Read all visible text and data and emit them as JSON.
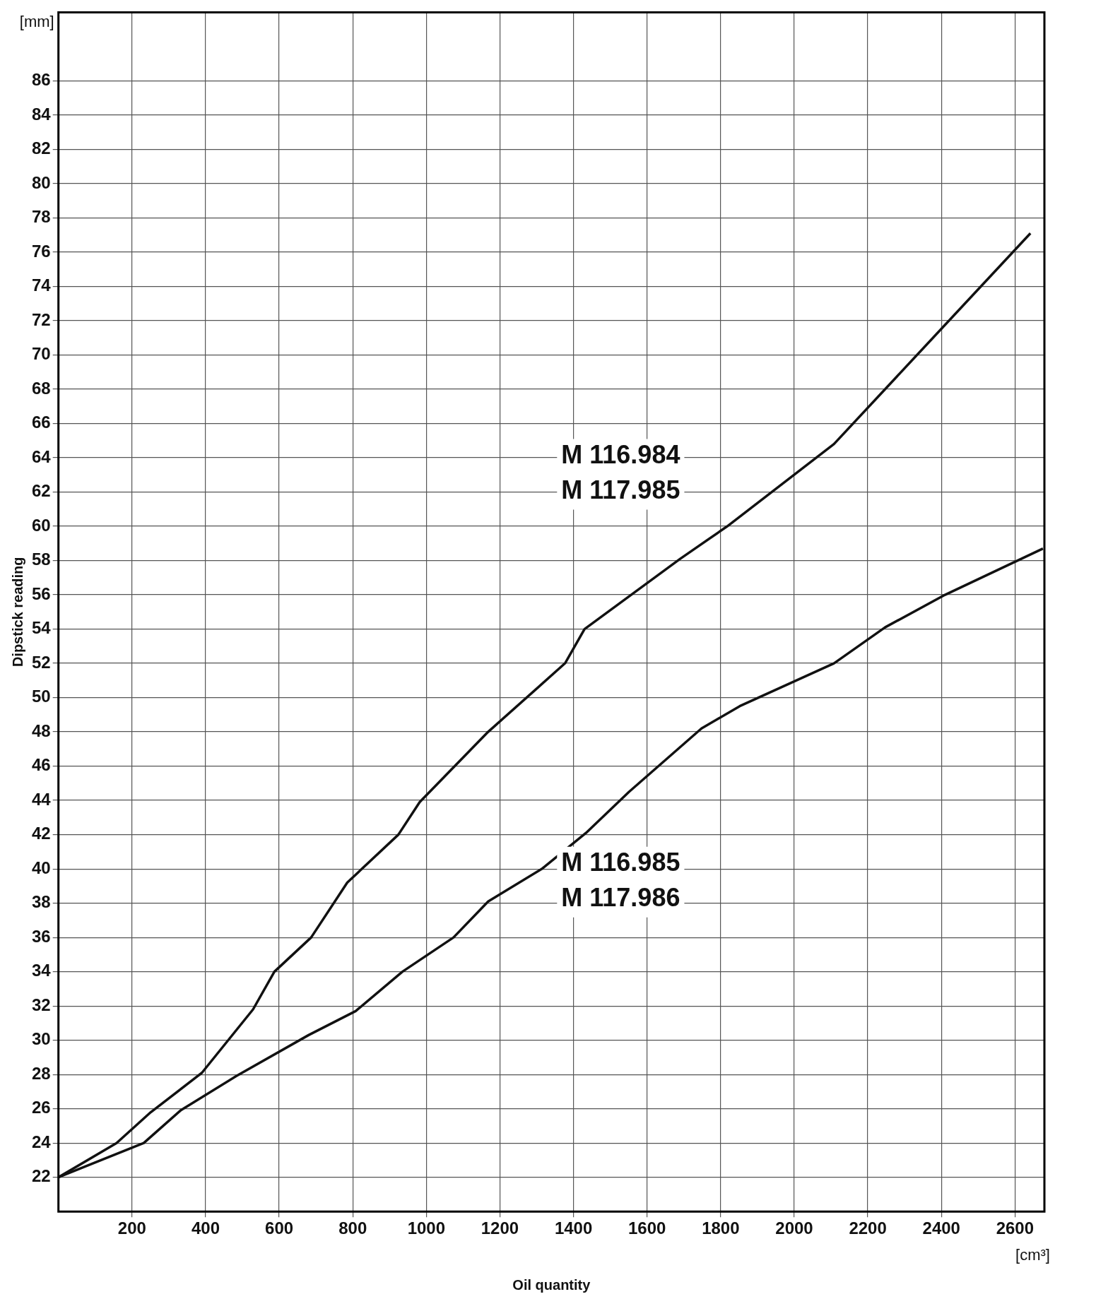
{
  "chart_data": {
    "type": "line",
    "xlabel": "Oil quantity",
    "ylabel": "Dipstick reading",
    "xlim": [
      0,
      2680
    ],
    "xticks": [
      200,
      400,
      600,
      800,
      1000,
      1200,
      1400,
      1600,
      1800,
      2000,
      2200,
      2400,
      2600
    ],
    "ylim": [
      20,
      90
    ],
    "yticks": [
      22,
      24,
      26,
      28,
      30,
      32,
      34,
      36,
      38,
      40,
      42,
      44,
      46,
      48,
      50,
      52,
      54,
      56,
      58,
      60,
      62,
      64,
      66,
      68,
      70,
      72,
      74,
      76,
      78,
      80,
      82,
      84,
      86
    ],
    "grid": true,
    "legend": false,
    "marker": "none",
    "line_style": "solid",
    "series": [
      {
        "color": "#111111",
        "x": [
          0,
          158,
          251,
          390,
          529,
          587,
          687,
          785,
          924,
          982,
          1168,
          1377,
          1430,
          1690,
          1818,
          2108,
          2642
        ],
        "values": [
          22,
          24,
          25.8,
          28.1,
          31.8,
          34,
          36,
          39.2,
          42,
          43.9,
          48,
          52,
          54,
          58.1,
          60,
          64.8,
          77.1
        ]
      },
      {
        "color": "#111111",
        "x": [
          0,
          232,
          332,
          483,
          680,
          808,
          935,
          1074,
          1168,
          1314,
          1434,
          1551,
          1748,
          1852,
          2108,
          2247,
          2410,
          2676
        ],
        "values": [
          22,
          24,
          25.9,
          27.9,
          30.3,
          31.7,
          34,
          36,
          38.1,
          40,
          42.1,
          44.5,
          48.2,
          49.5,
          52,
          54.1,
          56,
          58.7
        ]
      }
    ],
    "annotations": [
      "M 116.984\nM 117.985",
      "M 116.985\nM 117.986",
      "[mm]",
      "[cm³]"
    ]
  }
}
